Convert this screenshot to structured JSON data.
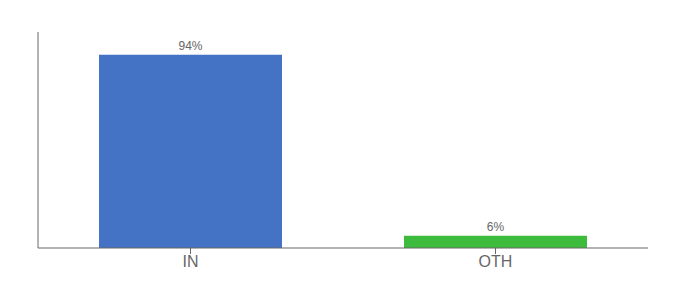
{
  "chart_data": {
    "type": "bar",
    "categories": [
      "IN",
      "OTH"
    ],
    "values": [
      94,
      6
    ],
    "colors": [
      "#4472c4",
      "#3dbb3d"
    ],
    "data_labels": true,
    "value_labels": [
      "94%",
      "6%"
    ],
    "ylim": [
      0,
      105
    ],
    "tick_labels": "x"
  }
}
